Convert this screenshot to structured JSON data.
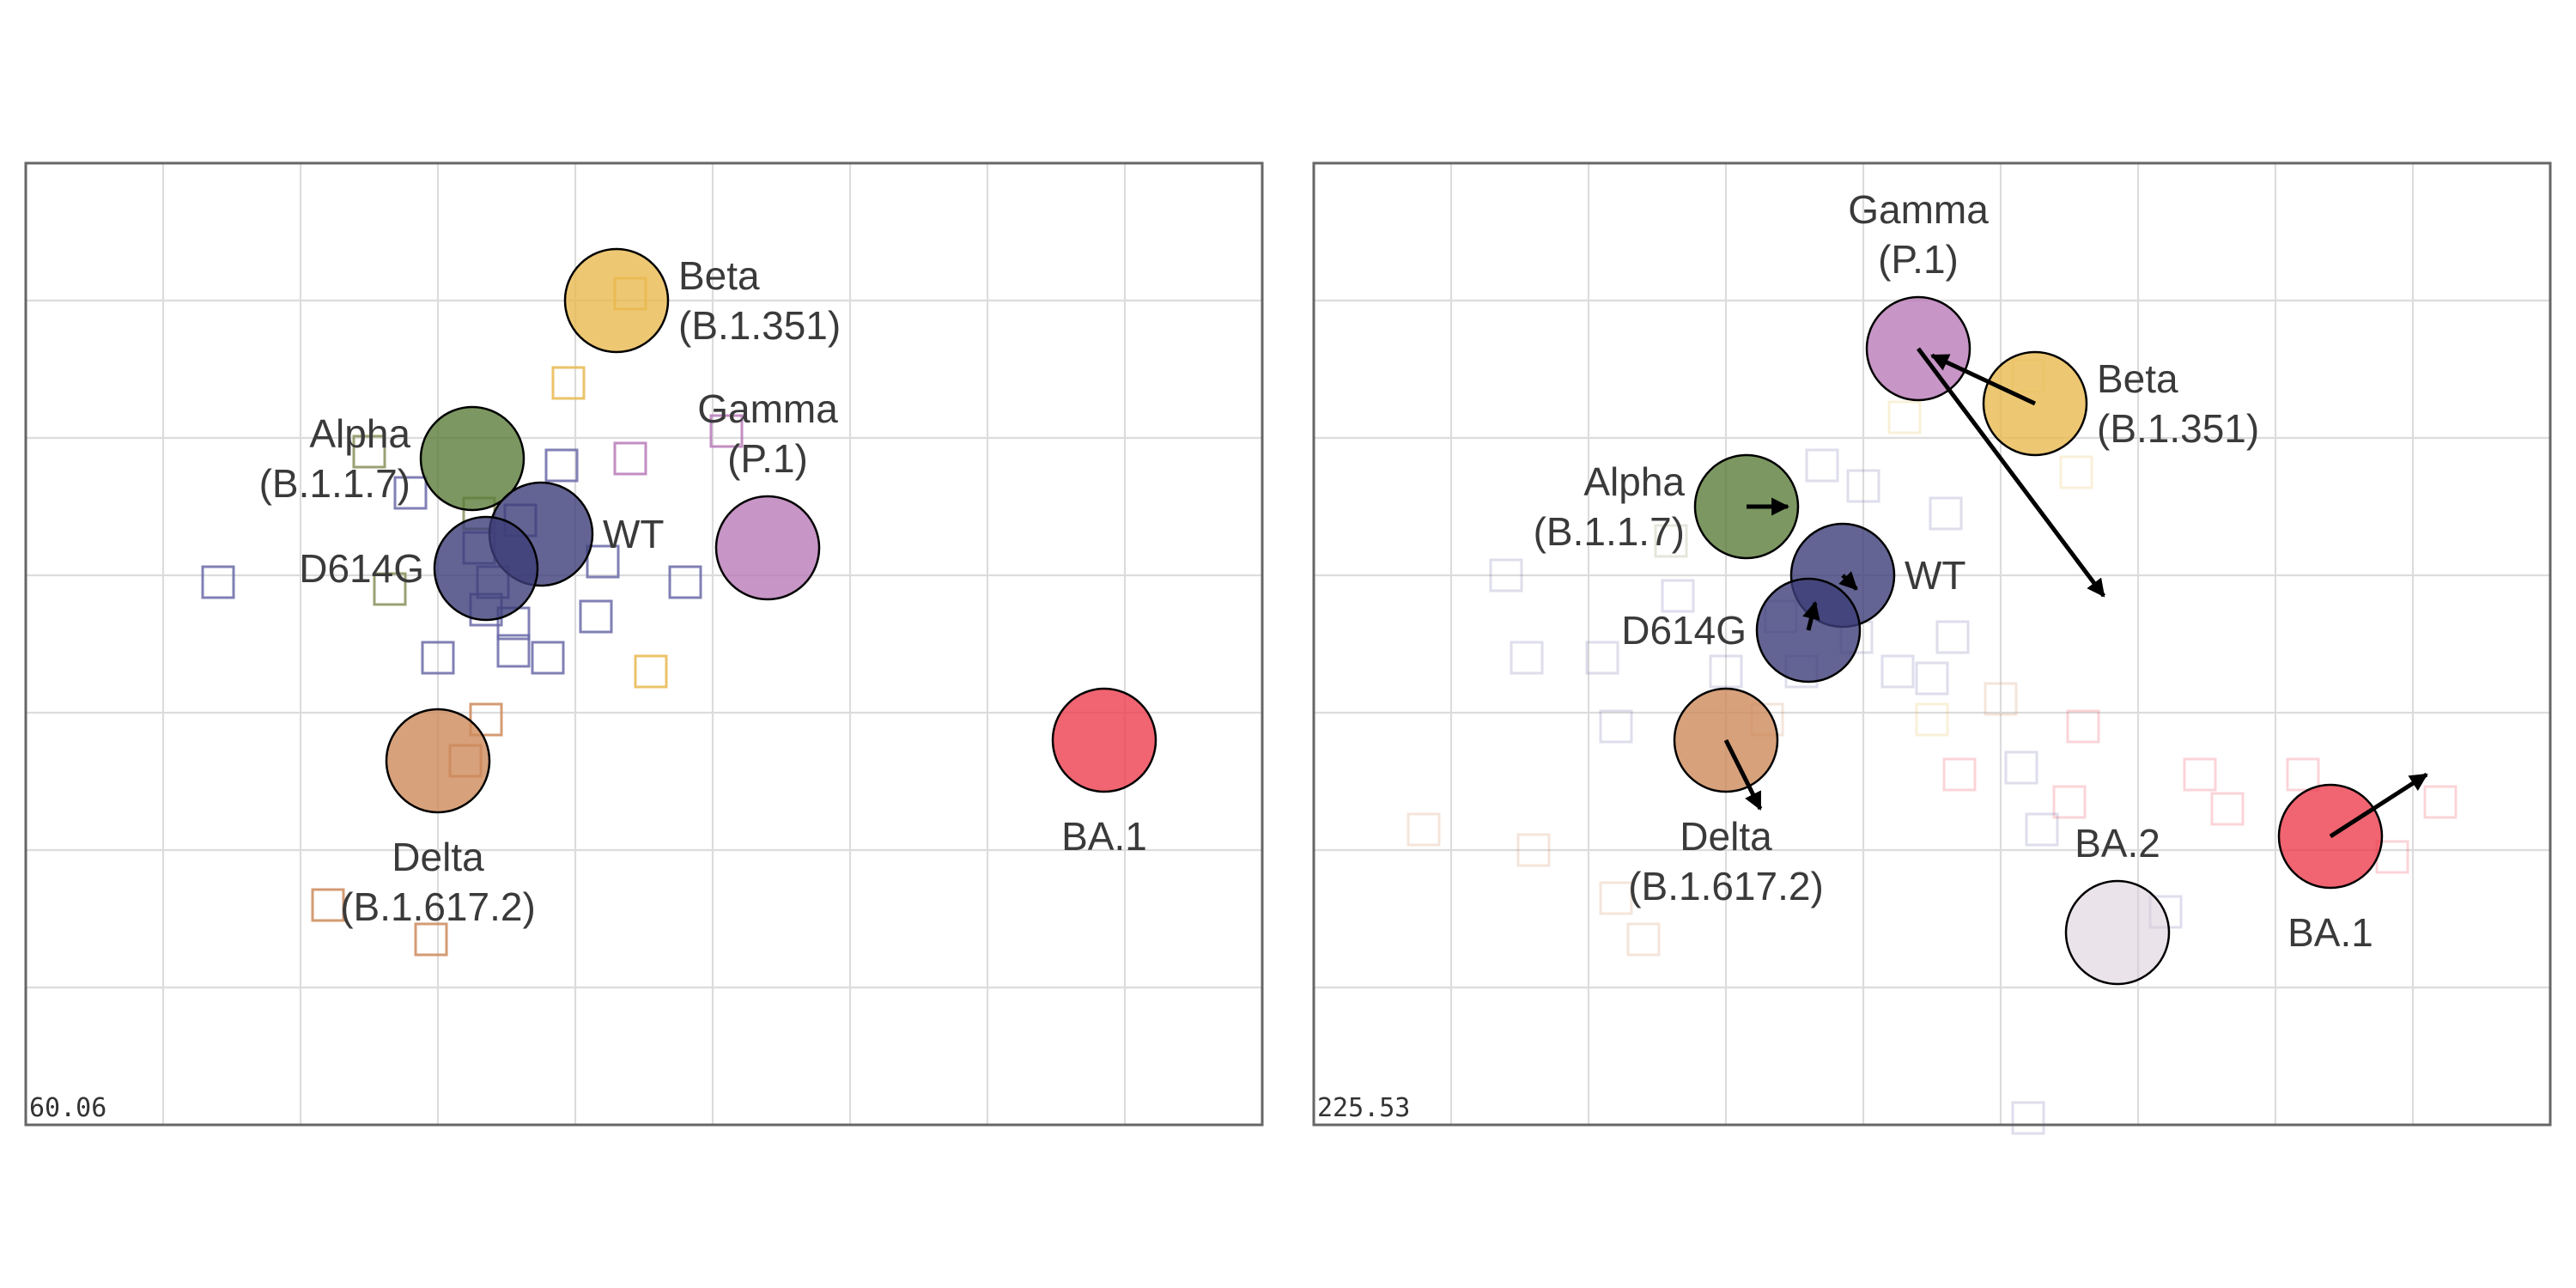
{
  "chart_data": [
    {
      "type": "scatter",
      "stress": "60.06",
      "grid": true,
      "xlim": [
        0,
        9
      ],
      "ylim": [
        0,
        7
      ],
      "antigens": [
        {
          "name": "Beta",
          "label_lines": [
            "Beta",
            "(B.1.351)"
          ],
          "x": 4.3,
          "y": 6.0,
          "color": "#e8b94f",
          "label_side": "right"
        },
        {
          "name": "Alpha",
          "label_lines": [
            "Alpha",
            "(B.1.1.7)"
          ],
          "x": 3.25,
          "y": 4.85,
          "color": "#5b7d3a",
          "label_side": "left"
        },
        {
          "name": "Gamma",
          "label_lines": [
            "Gamma",
            "(P.1)"
          ],
          "x": 5.4,
          "y": 4.2,
          "color": "#b97ab8",
          "label_side": "top"
        },
        {
          "name": "WT",
          "label_lines": [
            "WT"
          ],
          "x": 3.75,
          "y": 4.3,
          "color": "#3c3d78",
          "label_side": "right"
        },
        {
          "name": "D614G",
          "label_lines": [
            "D614G"
          ],
          "x": 3.35,
          "y": 4.05,
          "color": "#3c3d78",
          "label_side": "left"
        },
        {
          "name": "Delta",
          "label_lines": [
            "Delta",
            "(B.1.617.2)"
          ],
          "x": 3.0,
          "y": 2.65,
          "color": "#cd8a5a",
          "label_side": "bottom"
        },
        {
          "name": "BA.1",
          "label_lines": [
            "BA.1"
          ],
          "x": 7.85,
          "y": 2.8,
          "color": "#ee3d4e",
          "label_side": "bottom"
        }
      ],
      "sera": [
        {
          "x": 2.5,
          "y": 4.9,
          "color": "#8a8f5a"
        },
        {
          "x": 4.4,
          "y": 6.05,
          "color": "#e8b94f"
        },
        {
          "x": 3.95,
          "y": 5.4,
          "color": "#e8b94f"
        },
        {
          "x": 3.9,
          "y": 4.8,
          "color": "#6a6aa8"
        },
        {
          "x": 4.4,
          "y": 4.85,
          "color": "#b97ab8"
        },
        {
          "x": 5.1,
          "y": 5.05,
          "color": "#b97ab8"
        },
        {
          "x": 2.8,
          "y": 4.6,
          "color": "#6a6aa8"
        },
        {
          "x": 3.3,
          "y": 4.45,
          "color": "#8a8f5a"
        },
        {
          "x": 3.3,
          "y": 4.2,
          "color": "#6a6aa8"
        },
        {
          "x": 3.6,
          "y": 4.4,
          "color": "#6a6aa8"
        },
        {
          "x": 4.2,
          "y": 4.1,
          "color": "#6a6aa8"
        },
        {
          "x": 3.4,
          "y": 3.95,
          "color": "#6a6aa8"
        },
        {
          "x": 1.4,
          "y": 3.95,
          "color": "#6a6aa8"
        },
        {
          "x": 2.65,
          "y": 3.9,
          "color": "#8a8f5a"
        },
        {
          "x": 4.8,
          "y": 3.95,
          "color": "#6a6aa8"
        },
        {
          "x": 3.35,
          "y": 3.75,
          "color": "#6a6aa8"
        },
        {
          "x": 3.55,
          "y": 3.65,
          "color": "#6a6aa8"
        },
        {
          "x": 4.15,
          "y": 3.7,
          "color": "#6a6aa8"
        },
        {
          "x": 3.0,
          "y": 3.4,
          "color": "#6a6aa8"
        },
        {
          "x": 3.55,
          "y": 3.45,
          "color": "#6a6aa8"
        },
        {
          "x": 3.8,
          "y": 3.4,
          "color": "#6a6aa8"
        },
        {
          "x": 4.55,
          "y": 3.3,
          "color": "#e8b94f"
        },
        {
          "x": 3.35,
          "y": 2.95,
          "color": "#cd8a5a"
        },
        {
          "x": 3.2,
          "y": 2.65,
          "color": "#cd8a5a"
        },
        {
          "x": 2.2,
          "y": 1.6,
          "color": "#cd8a5a"
        },
        {
          "x": 2.95,
          "y": 1.35,
          "color": "#cd8a5a"
        }
      ],
      "arrows": []
    },
    {
      "type": "scatter",
      "stress": "225.53",
      "grid": true,
      "xlim": [
        0,
        9
      ],
      "ylim": [
        0,
        7
      ],
      "antigens": [
        {
          "name": "Gamma",
          "label_lines": [
            "Gamma",
            "(P.1)"
          ],
          "x": 4.4,
          "y": 5.65,
          "color": "#b97ab8",
          "label_side": "top"
        },
        {
          "name": "Beta",
          "label_lines": [
            "Beta",
            "(B.1.351)"
          ],
          "x": 5.25,
          "y": 5.25,
          "color": "#e8b94f",
          "label_side": "right"
        },
        {
          "name": "Alpha",
          "label_lines": [
            "Alpha",
            "(B.1.1.7)"
          ],
          "x": 3.15,
          "y": 4.5,
          "color": "#5b7d3a",
          "label_side": "left"
        },
        {
          "name": "WT",
          "label_lines": [
            "WT"
          ],
          "x": 3.85,
          "y": 4.0,
          "color": "#3c3d78",
          "label_side": "right"
        },
        {
          "name": "D614G",
          "label_lines": [
            "D614G"
          ],
          "x": 3.6,
          "y": 3.6,
          "color": "#3c3d78",
          "label_side": "left"
        },
        {
          "name": "Delta",
          "label_lines": [
            "Delta",
            "(B.1.617.2)"
          ],
          "x": 3.0,
          "y": 2.8,
          "color": "#cd8a5a",
          "label_side": "bottom"
        },
        {
          "name": "BA.1",
          "label_lines": [
            "BA.1"
          ],
          "x": 7.4,
          "y": 2.1,
          "color": "#ee3d4e",
          "label_side": "bottom"
        },
        {
          "name": "BA.2",
          "label_lines": [
            "BA.2"
          ],
          "x": 5.85,
          "y": 1.4,
          "color": "#d9ccd8",
          "label_side": "top",
          "faded": true
        }
      ],
      "sera": [
        {
          "x": 4.3,
          "y": 5.15,
          "color": "#e8b94f"
        },
        {
          "x": 5.2,
          "y": 5.45,
          "color": "#e8b94f"
        },
        {
          "x": 5.55,
          "y": 4.75,
          "color": "#e8b94f"
        },
        {
          "x": 3.7,
          "y": 4.8,
          "color": "#6a6aa8"
        },
        {
          "x": 4.0,
          "y": 4.65,
          "color": "#6a6aa8"
        },
        {
          "x": 4.6,
          "y": 4.45,
          "color": "#6a6aa8"
        },
        {
          "x": 1.4,
          "y": 4.0,
          "color": "#6a6aa8"
        },
        {
          "x": 2.6,
          "y": 4.25,
          "color": "#8a8f5a"
        },
        {
          "x": 2.65,
          "y": 3.85,
          "color": "#6a6aa8"
        },
        {
          "x": 3.4,
          "y": 3.7,
          "color": "#6a6aa8"
        },
        {
          "x": 3.95,
          "y": 3.55,
          "color": "#6a6aa8"
        },
        {
          "x": 4.65,
          "y": 3.55,
          "color": "#6a6aa8"
        },
        {
          "x": 1.55,
          "y": 3.4,
          "color": "#6a6aa8"
        },
        {
          "x": 2.1,
          "y": 3.4,
          "color": "#6a6aa8"
        },
        {
          "x": 3.0,
          "y": 3.3,
          "color": "#6a6aa8"
        },
        {
          "x": 3.55,
          "y": 3.3,
          "color": "#6a6aa8"
        },
        {
          "x": 4.25,
          "y": 3.3,
          "color": "#6a6aa8"
        },
        {
          "x": 4.5,
          "y": 3.25,
          "color": "#6a6aa8"
        },
        {
          "x": 5.0,
          "y": 3.1,
          "color": "#cd8a5a"
        },
        {
          "x": 2.2,
          "y": 2.9,
          "color": "#6a6aa8"
        },
        {
          "x": 3.3,
          "y": 2.95,
          "color": "#cd8a5a"
        },
        {
          "x": 4.5,
          "y": 2.95,
          "color": "#e8b94f"
        },
        {
          "x": 5.6,
          "y": 2.9,
          "color": "#ee3d4e"
        },
        {
          "x": 5.15,
          "y": 2.6,
          "color": "#6a6aa8"
        },
        {
          "x": 4.7,
          "y": 2.55,
          "color": "#ee3d4e"
        },
        {
          "x": 6.45,
          "y": 2.55,
          "color": "#ee3d4e"
        },
        {
          "x": 5.5,
          "y": 2.35,
          "color": "#ee3d4e"
        },
        {
          "x": 7.2,
          "y": 2.55,
          "color": "#ee3d4e"
        },
        {
          "x": 6.65,
          "y": 2.3,
          "color": "#ee3d4e"
        },
        {
          "x": 8.2,
          "y": 2.35,
          "color": "#ee3d4e"
        },
        {
          "x": 0.8,
          "y": 2.15,
          "color": "#cd8a5a"
        },
        {
          "x": 1.6,
          "y": 2.0,
          "color": "#cd8a5a"
        },
        {
          "x": 5.3,
          "y": 2.15,
          "color": "#6a6aa8"
        },
        {
          "x": 7.85,
          "y": 1.95,
          "color": "#ee3d4e"
        },
        {
          "x": 2.2,
          "y": 1.65,
          "color": "#cd8a5a"
        },
        {
          "x": 6.2,
          "y": 1.55,
          "color": "#6a6aa8"
        },
        {
          "x": 2.4,
          "y": 1.35,
          "color": "#cd8a5a"
        },
        {
          "x": 5.2,
          "y": 0.05,
          "color": "#6a6aa8"
        }
      ],
      "arrows": [
        {
          "from": [
            5.25,
            5.25
          ],
          "to": [
            4.5,
            5.6
          ]
        },
        {
          "from": [
            4.4,
            5.65
          ],
          "to": [
            5.75,
            3.85
          ]
        },
        {
          "from": [
            3.15,
            4.5
          ],
          "to": [
            3.45,
            4.5
          ]
        },
        {
          "from": [
            3.85,
            4.0
          ],
          "to": [
            3.95,
            3.9
          ]
        },
        {
          "from": [
            3.6,
            3.6
          ],
          "to": [
            3.65,
            3.8
          ]
        },
        {
          "from": [
            3.0,
            2.8
          ],
          "to": [
            3.25,
            2.3
          ]
        },
        {
          "from": [
            7.4,
            2.1
          ],
          "to": [
            8.1,
            2.55
          ]
        }
      ]
    }
  ]
}
